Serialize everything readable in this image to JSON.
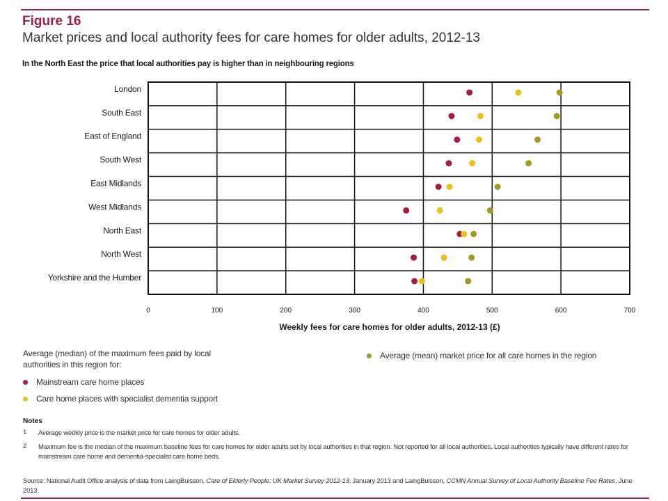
{
  "figure": {
    "label": "Figure 16",
    "title": "Market prices and local authority fees for care homes for older adults, 2012-13",
    "subtitle": "In the North East the price that local authorities pay is higher than in neighbouring regions"
  },
  "chart_data": {
    "type": "scatter",
    "orientation": "horizontal-dot-plot",
    "categories": [
      "London",
      "South East",
      "East of England",
      "South West",
      "East Midlands",
      "West Midlands",
      "North East",
      "North West",
      "Yorkshire and the Humber"
    ],
    "xlabel": "Weekly fees for care homes for older adults, 2012-13 (£)",
    "xlim": [
      0,
      700
    ],
    "xticks": [
      "0",
      "100",
      "200",
      "300",
      "400",
      "500",
      "600",
      "700"
    ],
    "grid": true,
    "series": [
      {
        "key": "mainstream",
        "color": "#a3203f",
        "values": [
          467,
          441,
          449,
          437,
          422,
          375,
          453,
          386,
          387
        ]
      },
      {
        "key": "dementia",
        "color": "#e5c21b",
        "values": [
          538,
          483,
          481,
          471,
          438,
          424,
          459,
          430,
          398
        ]
      },
      {
        "key": "market",
        "color": "#a09a2b",
        "values": [
          598,
          594,
          566,
          553,
          508,
          497,
          473,
          470,
          465
        ]
      }
    ]
  },
  "legend": {
    "heading": "Average (median) of the maximum fees paid by local authorities in this region for:",
    "mainstream": "Mainstream care home places",
    "dementia": "Care home places with specialist dementia support",
    "market": "Average (mean) market price for all care homes in the region"
  },
  "notes": {
    "heading": "Notes",
    "items": [
      {
        "num": "1",
        "text": "Average weekly price is the market price for care homes for older adults."
      },
      {
        "num": "2",
        "text": "Maximum fee is the median of the maximum baseline fees for care homes for older adults set by local authorities in that region. Not reported for all local authorities. Local authorities typically have different rates for mainstream care home and dementia-specialist care home beds."
      }
    ]
  },
  "source": {
    "prefix": "Source: National Audit Office analysis of data from LaingBuisson, ",
    "title1": "Care of Elderly People: UK Market Survey 2012-13",
    "middle": ", January 2013 and LaingBuisson, ",
    "title2": "CCMN Annual Survey of Local Authority Baseline Fee Rates",
    "suffix": ", June 2013"
  }
}
